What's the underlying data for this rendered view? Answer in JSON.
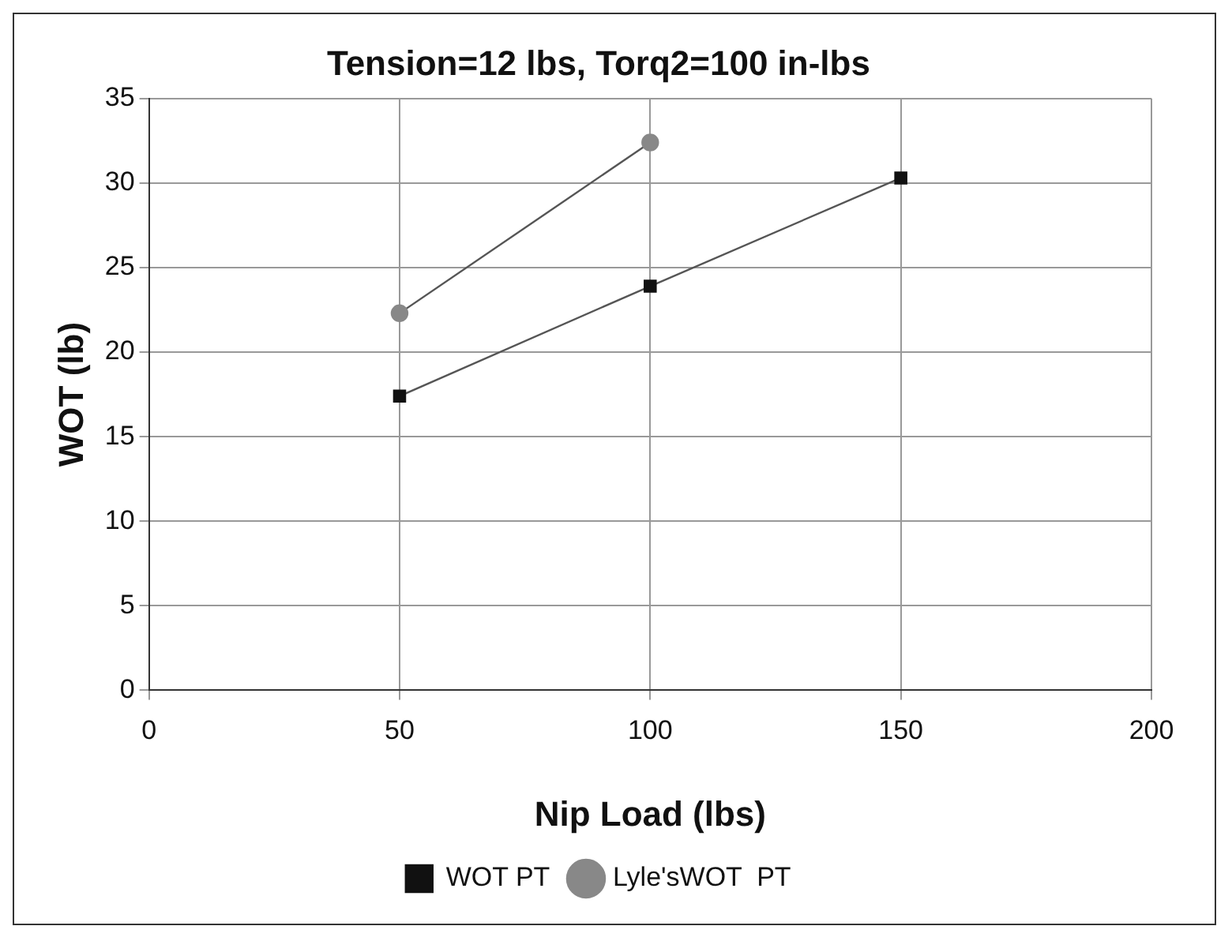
{
  "chart_data": {
    "type": "line",
    "title": "Tension=12 lbs, Torq2=100 in-lbs",
    "xlabel": "Nip Load (lbs)",
    "ylabel": "WOT (lb)",
    "series": [
      {
        "name": "WOT PT",
        "color": "#111111",
        "x": [
          50,
          100,
          150
        ],
        "values": [
          17.4,
          23.9,
          30.3
        ],
        "marker": "square"
      },
      {
        "name": "Lyle'sWOT  PT",
        "color": "#888888",
        "x": [
          50,
          100
        ],
        "values": [
          22.3,
          32.4
        ],
        "marker": "circle"
      }
    ],
    "xlim": [
      0,
      200
    ],
    "xticks": [
      0,
      50,
      100,
      150,
      200
    ],
    "ylim": [
      0,
      35
    ],
    "yticks": [
      0,
      5,
      10,
      15,
      20,
      25,
      30,
      35
    ],
    "grid": true,
    "legend": "bottom",
    "line_style": "solid"
  }
}
